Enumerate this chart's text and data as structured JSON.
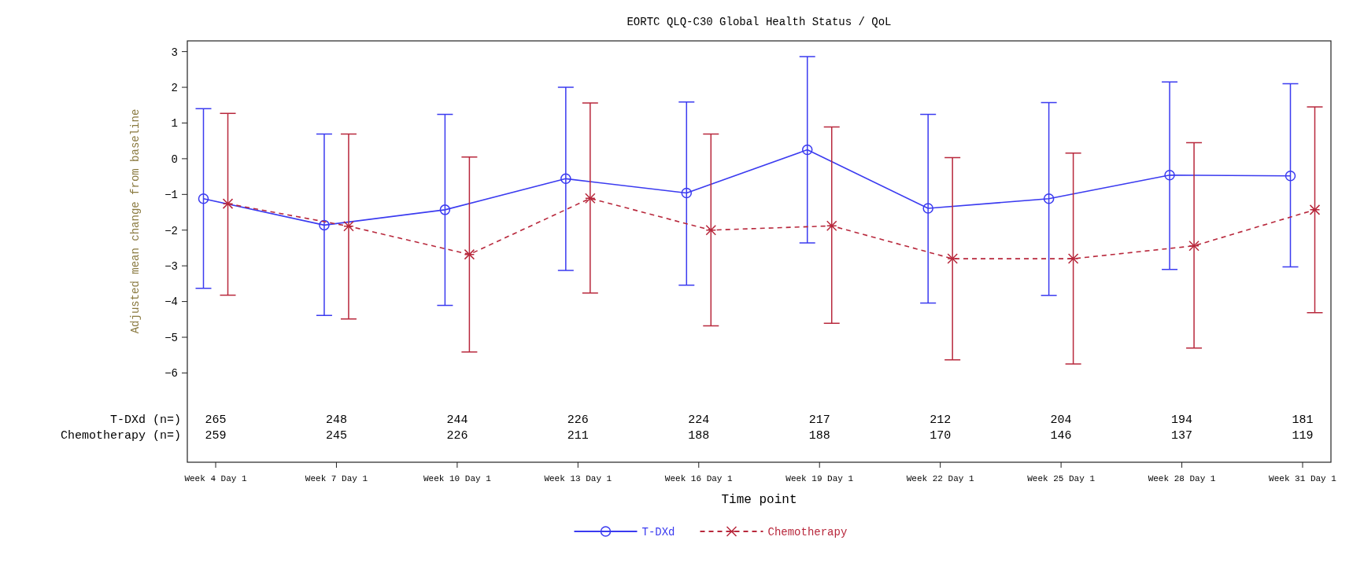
{
  "chart_data": {
    "type": "line",
    "title": "EORTC QLQ-C30 Global Health Status / QoL",
    "xlabel": "Time point",
    "ylabel": "Adjusted mean change from baseline",
    "categories": [
      "Week 4 Day 1",
      "Week 7 Day 1",
      "Week 10 Day 1",
      "Week 13 Day 1",
      "Week 16 Day 1",
      "Week 19 Day 1",
      "Week 22 Day 1",
      "Week 25 Day 1",
      "Week 28 Day 1",
      "Week 31 Day 1"
    ],
    "ylim": [
      -8.5,
      3.3
    ],
    "yticks": [
      -6,
      -5,
      -4,
      -3,
      -2,
      -1,
      0,
      1,
      2,
      3
    ],
    "grid": false,
    "legend": "bottom",
    "series": [
      {
        "name": "T-DXd",
        "color": "#3b3bf0",
        "marker": "circle",
        "line_style": "solid",
        "values": [
          -1.12,
          -1.86,
          -1.43,
          -0.56,
          -0.96,
          0.25,
          -1.39,
          -1.12,
          -0.46,
          -0.48
        ],
        "errors": [
          [
            -3.63,
            1.4
          ],
          [
            -4.39,
            0.69
          ],
          [
            -4.11,
            1.24
          ],
          [
            -3.13,
            2.0
          ],
          [
            -3.54,
            1.59
          ],
          [
            -2.36,
            2.86
          ],
          [
            -4.04,
            1.24
          ],
          [
            -3.83,
            1.57
          ],
          [
            -3.1,
            2.15
          ],
          [
            -3.03,
            2.1
          ]
        ]
      },
      {
        "name": "Chemotherapy",
        "color": "#b8283c",
        "marker": "cross",
        "line_style": "dashed",
        "values": [
          -1.26,
          -1.89,
          -2.68,
          -1.11,
          -2.0,
          -1.88,
          -2.8,
          -2.8,
          -2.44,
          -1.43
        ],
        "errors": [
          [
            -3.82,
            1.27
          ],
          [
            -4.49,
            0.69
          ],
          [
            -5.41,
            0.05
          ],
          [
            -3.76,
            1.56
          ],
          [
            -4.68,
            0.69
          ],
          [
            -4.61,
            0.89
          ],
          [
            -5.63,
            0.03
          ],
          [
            -5.75,
            0.16
          ],
          [
            -5.3,
            0.45
          ],
          [
            -4.31,
            1.45
          ]
        ]
      }
    ],
    "annotations": [
      "T-DXd (n=)",
      "265",
      "248",
      "244",
      "226",
      "224",
      "217",
      "212",
      "204",
      "194",
      "181",
      "Chemotherapy (n=)",
      "259",
      "245",
      "226",
      "211",
      "188",
      "188",
      "170",
      "146",
      "137",
      "119"
    ]
  }
}
